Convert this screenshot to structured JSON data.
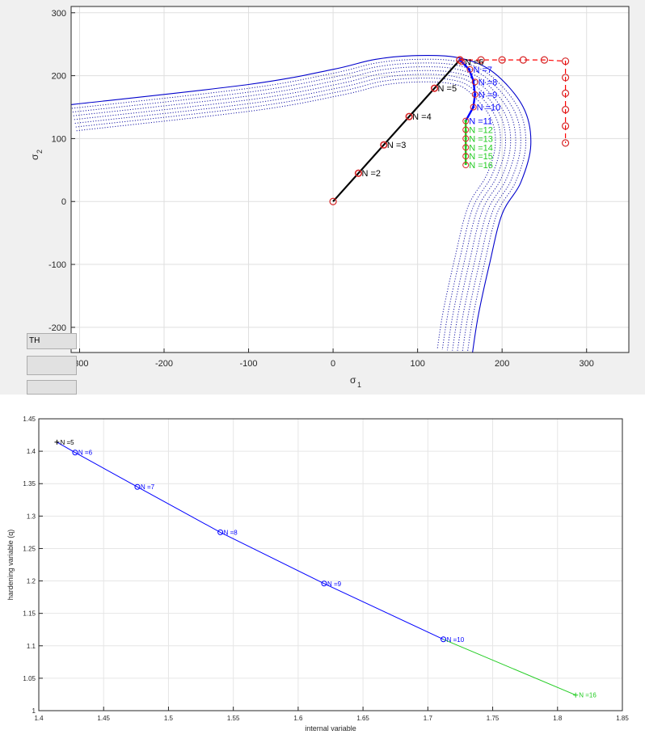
{
  "chart_data": [
    {
      "type": "line",
      "title": "",
      "xlabel": "σ",
      "xlabel_sub": "1",
      "ylabel": "σ",
      "ylabel_sub": "2",
      "xlim": [
        -310,
        350
      ],
      "ylim": [
        -240,
        310
      ],
      "xticks": [
        -300,
        -200,
        -100,
        0,
        100,
        200,
        300
      ],
      "yticks": [
        -200,
        -100,
        0,
        100,
        200,
        300
      ],
      "grid": true,
      "colors": {
        "path": "#000000",
        "marker": "#d62728",
        "surface": "#0000cc",
        "plastic": "#0000ff",
        "green": "#22cc22",
        "trial": "#ff0000"
      },
      "series": [
        {
          "style": "black-path",
          "x": [
            0,
            30,
            60,
            90,
            120,
            150
          ],
          "y": [
            0,
            45,
            90,
            135,
            180,
            225
          ]
        },
        {
          "style": "blue-path",
          "x": [
            150,
            161,
            166,
            168,
            166,
            157
          ],
          "y": [
            225,
            210,
            192,
            170,
            150,
            128
          ]
        },
        {
          "style": "green-path",
          "x": [
            157,
            157,
            157,
            157,
            157,
            157
          ],
          "y": [
            128,
            112,
            100,
            88,
            75,
            60
          ]
        },
        {
          "style": "red-trial",
          "x": [
            150,
            175,
            200,
            225,
            250,
            275,
            275,
            275,
            275,
            275,
            275
          ],
          "y": [
            225,
            225,
            225,
            225,
            225,
            223,
            197,
            172,
            146,
            120,
            93
          ]
        }
      ],
      "annotations": [
        {
          "text": "N =2",
          "x": 30,
          "y": 45,
          "color": "#000000"
        },
        {
          "text": "N =3",
          "x": 60,
          "y": 90,
          "color": "#000000"
        },
        {
          "text": "N =4",
          "x": 90,
          "y": 135,
          "color": "#000000"
        },
        {
          "text": "N =5",
          "x": 120,
          "y": 180,
          "color": "#000000"
        },
        {
          "text": "N =6",
          "x": 152,
          "y": 222,
          "color": "#000000"
        },
        {
          "text": "N =7",
          "x": 162,
          "y": 210,
          "color": "#0000ff"
        },
        {
          "text": "N =8",
          "x": 168,
          "y": 190,
          "color": "#0000ff"
        },
        {
          "text": "N =9",
          "x": 168,
          "y": 170,
          "color": "#0000ff"
        },
        {
          "text": "N =10",
          "x": 166,
          "y": 150,
          "color": "#0000ff"
        },
        {
          "text": "N =11",
          "x": 157,
          "y": 128,
          "color": "#0000ff"
        },
        {
          "text": "N =12",
          "x": 157,
          "y": 114,
          "color": "#22cc22"
        },
        {
          "text": "N =13",
          "x": 157,
          "y": 100,
          "color": "#22cc22"
        },
        {
          "text": "N =14",
          "x": 157,
          "y": 86,
          "color": "#22cc22"
        },
        {
          "text": "N =15",
          "x": 157,
          "y": 72,
          "color": "#22cc22"
        },
        {
          "text": "N =16",
          "x": 157,
          "y": 58,
          "color": "#22cc22"
        }
      ],
      "yield_surface_outer": [
        [
          -310,
          154
        ],
        [
          -100,
          186
        ],
        [
          0,
          210
        ],
        [
          50,
          226
        ],
        [
          100,
          232
        ],
        [
          150,
          228
        ],
        [
          190,
          205
        ],
        [
          225,
          150
        ],
        [
          234,
          90
        ],
        [
          222,
          30
        ],
        [
          200,
          -20
        ],
        [
          185,
          -100
        ],
        [
          172,
          -180
        ],
        [
          165,
          -240
        ]
      ],
      "yield_surface_offsets": [
        6,
        12,
        18,
        24,
        30,
        36,
        42
      ],
      "buttons": [
        "TH",
        "",
        ""
      ]
    },
    {
      "type": "line",
      "title": "",
      "xlabel": "internal variable",
      "ylabel": "hardening variable (q)",
      "xlim": [
        1.4,
        1.85
      ],
      "ylim": [
        1.0,
        1.45
      ],
      "xticks": [
        "1.4",
        "1.45",
        "1.5",
        "1.55",
        "1.6",
        "1.65",
        "1.7",
        "1.75",
        "1.8",
        "1.85"
      ],
      "yticks": [
        "1",
        "1.05",
        "1.1",
        "1.15",
        "1.2",
        "1.25",
        "1.3",
        "1.35",
        "1.4",
        "1.45"
      ],
      "grid": true,
      "colors": {
        "black": "#000000",
        "blue": "#0000ff",
        "green": "#22cc22"
      },
      "series": [
        {
          "color": "#0000ff",
          "x": [
            1.414,
            1.428,
            1.476,
            1.54,
            1.62,
            1.712
          ],
          "y": [
            1.414,
            1.398,
            1.345,
            1.275,
            1.196,
            1.11
          ]
        },
        {
          "color": "#22cc22",
          "x": [
            1.712,
            1.814
          ],
          "y": [
            1.11,
            1.024
          ]
        }
      ],
      "annotations": [
        {
          "text": "N =5",
          "x": 1.414,
          "y": 1.414,
          "color": "#000000"
        },
        {
          "text": "N =6",
          "x": 1.428,
          "y": 1.398,
          "color": "#0000ff"
        },
        {
          "text": "N =7",
          "x": 1.476,
          "y": 1.345,
          "color": "#0000ff"
        },
        {
          "text": "N =8",
          "x": 1.54,
          "y": 1.275,
          "color": "#0000ff"
        },
        {
          "text": "N =9",
          "x": 1.62,
          "y": 1.196,
          "color": "#0000ff"
        },
        {
          "text": "N =10",
          "x": 1.712,
          "y": 1.11,
          "color": "#0000ff"
        },
        {
          "text": "N =16",
          "x": 1.814,
          "y": 1.024,
          "color": "#22cc22"
        }
      ]
    }
  ]
}
